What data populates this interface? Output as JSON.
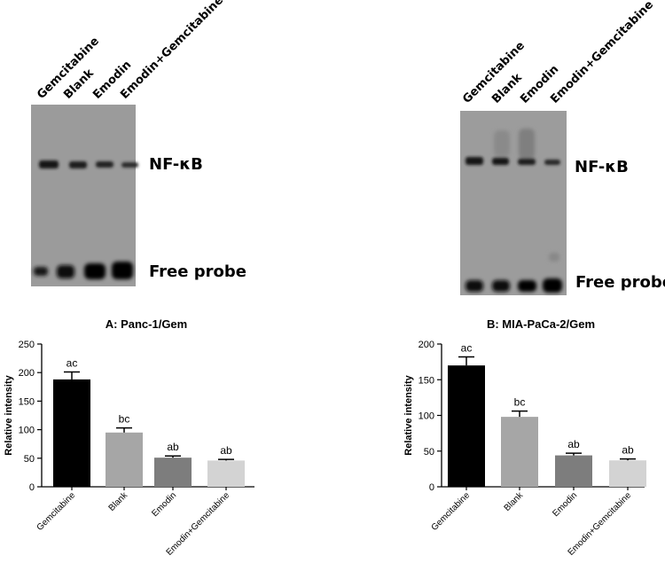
{
  "lanes": [
    "Gemcitabine",
    "Blank",
    "Emodin",
    "Emodin+Gemcitabine"
  ],
  "gel_labels": {
    "nfkb": "NF-κB",
    "free_probe": "Free probe"
  },
  "colors": {
    "black": "#000000",
    "grey_mid": "#a6a6a6",
    "grey_dark": "#7d7d7d",
    "grey_light": "#d3d3d3"
  },
  "chart_data": [
    {
      "type": "bar",
      "title": "A: Panc-1/Gem",
      "xlabel": "",
      "ylabel": "Relative intensity",
      "categories": [
        "Gemcitabine",
        "Blank",
        "Emodin",
        "Emodin+Gemcitabine"
      ],
      "values": [
        188,
        95,
        51,
        46
      ],
      "errors": [
        13,
        8,
        3,
        2
      ],
      "significance": [
        "ac",
        "bc",
        "ab",
        "ab"
      ],
      "bar_colors": [
        "#000000",
        "#a6a6a6",
        "#7d7d7d",
        "#d3d3d3"
      ],
      "ylim": [
        0,
        250
      ],
      "yticks": [
        0,
        50,
        100,
        150,
        200,
        250
      ]
    },
    {
      "type": "bar",
      "title": "B: MIA-PaCa-2/Gem",
      "xlabel": "",
      "ylabel": "Relative intensity",
      "categories": [
        "Gemcitabine",
        "Blank",
        "Emodin",
        "Emodin+Gemcitabine"
      ],
      "values": [
        170,
        98,
        44,
        37
      ],
      "errors": [
        12,
        8,
        3,
        2
      ],
      "significance": [
        "ac",
        "bc",
        "ab",
        "ab"
      ],
      "bar_colors": [
        "#000000",
        "#a6a6a6",
        "#7d7d7d",
        "#d3d3d3"
      ],
      "ylim": [
        0,
        200
      ],
      "yticks": [
        0,
        50,
        100,
        150,
        200
      ]
    }
  ]
}
